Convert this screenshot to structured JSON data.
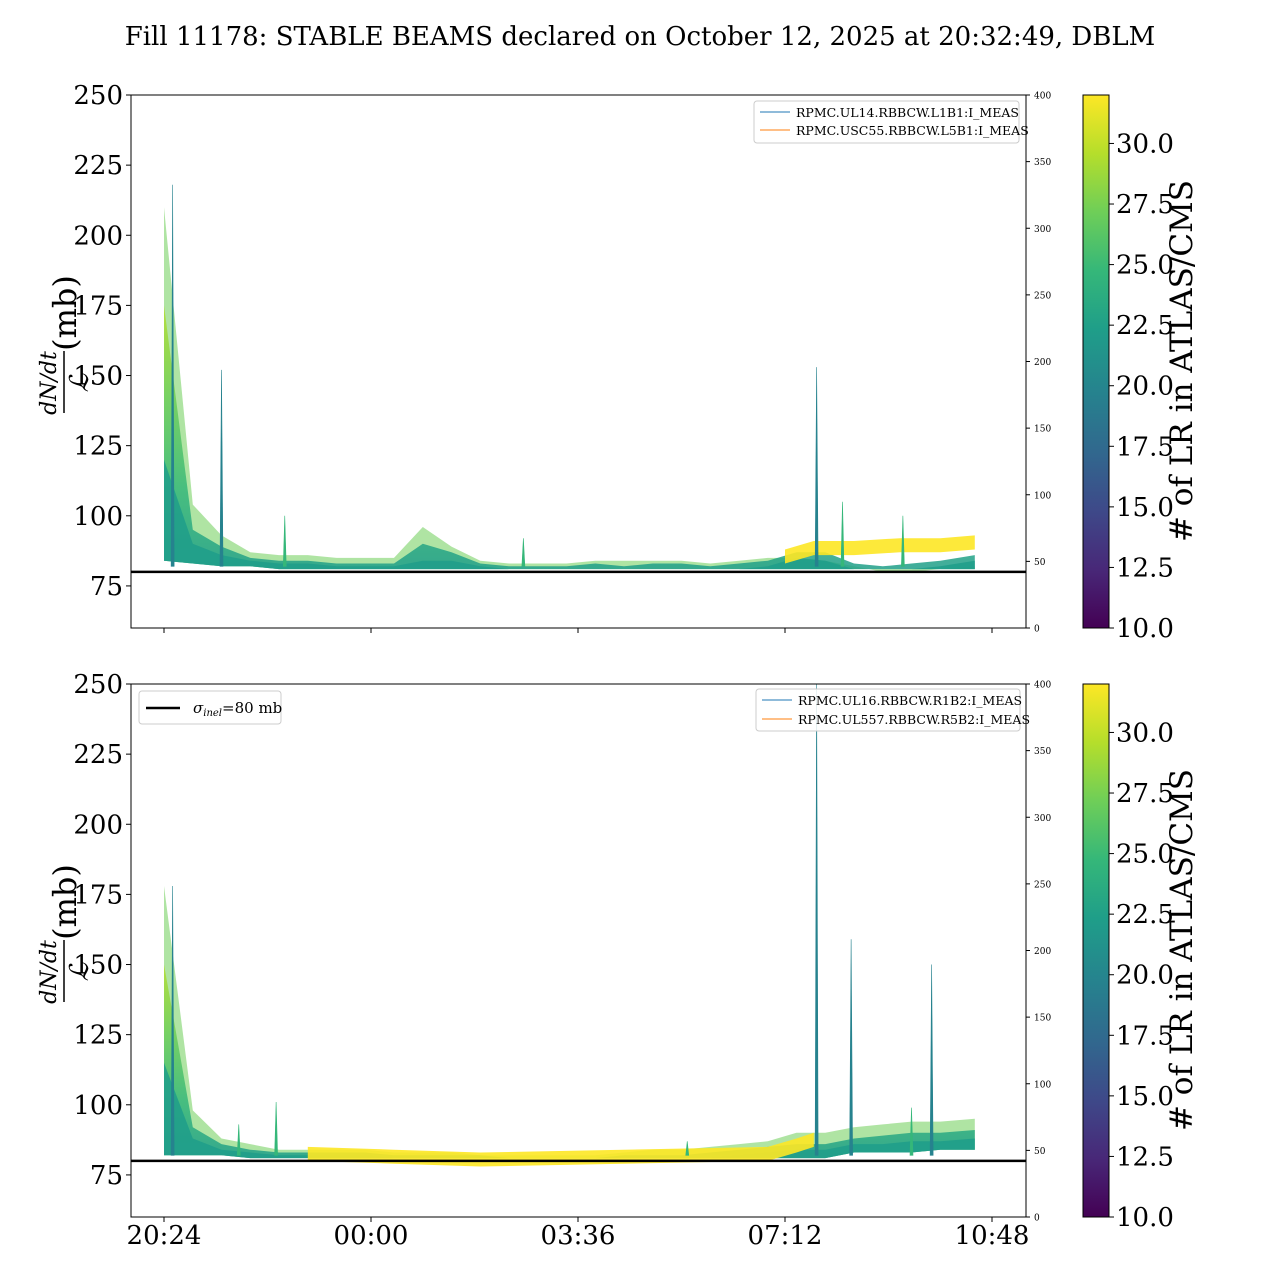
{
  "title": "Fill 11178: STABLE BEAMS declared on October 12, 2025 at 20:32:49, DBLM",
  "colorscale": [
    "#440154",
    "#482878",
    "#3e4989",
    "#31688e",
    "#26828e",
    "#1f9e89",
    "#35b779",
    "#6ece58",
    "#b5de2b",
    "#fde725"
  ],
  "chart_data": [
    {
      "type": "area",
      "panel": "top",
      "ylabel": "(mb)",
      "ylabel_math": "dN/dt / ℒ",
      "ylim": [
        60,
        250
      ],
      "yticks": [
        75,
        100,
        125,
        150,
        175,
        200,
        225,
        250
      ],
      "y2lim": [
        0,
        400
      ],
      "y2ticks": [
        0,
        50,
        100,
        150,
        200,
        250,
        300,
        350,
        400
      ],
      "x_hours": [
        0,
        0.5,
        1,
        1.5,
        2,
        2.5,
        3,
        3.5,
        4,
        4.5,
        5,
        5.5,
        6,
        6.5,
        7,
        7.5,
        8,
        8.5,
        9,
        9.5,
        10,
        10.5,
        11,
        11.5,
        12,
        12.5,
        13,
        13.5,
        14.1
      ],
      "series": [
        {
          "name": "envelope_top",
          "values": [
            210,
            104,
            93,
            87,
            86,
            86,
            85,
            85,
            85,
            96,
            89,
            84,
            83,
            83,
            83,
            84,
            84,
            84,
            84,
            83,
            84,
            85,
            85,
            84,
            82,
            80,
            80,
            81,
            82
          ]
        },
        {
          "name": "upper_band",
          "values": [
            175,
            95,
            89,
            85,
            84,
            84,
            83,
            83,
            83,
            90,
            87,
            83,
            82,
            82,
            82,
            83,
            82,
            83,
            83,
            82,
            83,
            84,
            87,
            87,
            83,
            82,
            83,
            84,
            86
          ]
        },
        {
          "name": "lower_band",
          "values": [
            120,
            90,
            86,
            84,
            83,
            83,
            82,
            82,
            82,
            84,
            84,
            82,
            81,
            81,
            81,
            81,
            81,
            81,
            81,
            81,
            81,
            82,
            85,
            84,
            81,
            81,
            81,
            82,
            84
          ]
        },
        {
          "name": "baseline",
          "values": [
            84,
            83,
            82,
            82,
            81,
            81,
            81,
            81,
            81,
            81,
            81,
            81,
            81,
            81,
            81,
            81,
            81,
            81,
            81,
            81,
            81,
            81,
            81,
            81,
            81,
            81,
            81,
            81,
            81
          ]
        },
        {
          "name": "bright_upper",
          "values": [
            0,
            0,
            0,
            0,
            0,
            0,
            0,
            0,
            0,
            0,
            0,
            0,
            0,
            0,
            0,
            0,
            0,
            0,
            0,
            0,
            0,
            0,
            0,
            0,
            0,
            0,
            0,
            0,
            0
          ]
        }
      ],
      "spikes": [
        [
          0.15,
          218
        ],
        [
          1.0,
          152
        ],
        [
          2.1,
          100
        ],
        [
          6.25,
          92
        ],
        [
          11.35,
          153
        ],
        [
          11.8,
          105
        ],
        [
          12.85,
          100
        ]
      ],
      "bright_band": [
        [
          10.8,
          88
        ],
        [
          11.3,
          91
        ],
        [
          12.0,
          91
        ],
        [
          12.8,
          92
        ],
        [
          13.0,
          92
        ],
        [
          13.5,
          92
        ],
        [
          14.1,
          93
        ]
      ],
      "reference_line": 80,
      "legend": [
        "RPMC.UL14.RBBCW.L1B1:I_MEAS",
        "RPMC.USC55.RBBCW.L5B1:I_MEAS"
      ],
      "legend_colors": [
        "#1f77b4",
        "#ff7f0e"
      ],
      "legend_placement": "top-right",
      "colorbar_label": "# of LR in ATLAS/CMS",
      "colorbar_range": [
        10,
        32
      ],
      "colorbar_ticks": [
        "10.0",
        "12.5",
        "15.0",
        "17.5",
        "20.0",
        "22.5",
        "25.0",
        "27.5",
        "30.0"
      ]
    },
    {
      "type": "area",
      "panel": "bottom",
      "ylabel": "(mb)",
      "ylabel_math": "dN/dt / ℒ",
      "ylim": [
        60,
        250
      ],
      "yticks": [
        75,
        100,
        125,
        150,
        175,
        200,
        225,
        250
      ],
      "y2lim": [
        0,
        400
      ],
      "y2ticks": [
        0,
        50,
        100,
        150,
        200,
        250,
        300,
        350,
        400
      ],
      "xticks": [
        "20:24",
        "00:00",
        "03:36",
        "07:12",
        "10:48"
      ],
      "xtick_hours": [
        0,
        3.6,
        7.2,
        10.8,
        14.4
      ],
      "x_hours": [
        0,
        0.5,
        1,
        1.5,
        2,
        2.5,
        3,
        3.5,
        4,
        4.5,
        5,
        5.5,
        6,
        6.5,
        7,
        7.5,
        8,
        8.5,
        9,
        9.5,
        10,
        10.5,
        11,
        11.5,
        12,
        12.5,
        13,
        13.5,
        14.1
      ],
      "series": [
        {
          "name": "envelope_top",
          "values": [
            178,
            98,
            88,
            86,
            84,
            84,
            84,
            84,
            83,
            83,
            83,
            82,
            82,
            82,
            82,
            82,
            83,
            84,
            84,
            85,
            86,
            87,
            90,
            90,
            92,
            93,
            94,
            94,
            95
          ]
        },
        {
          "name": "upper_band",
          "values": [
            150,
            92,
            86,
            84,
            83,
            83,
            83,
            83,
            82,
            82,
            82,
            82,
            81,
            81,
            81,
            81,
            82,
            82,
            82,
            83,
            84,
            85,
            86,
            86,
            88,
            89,
            90,
            90,
            91
          ]
        },
        {
          "name": "lower_band",
          "values": [
            115,
            88,
            84,
            83,
            82,
            82,
            82,
            82,
            81,
            81,
            81,
            81,
            81,
            81,
            81,
            81,
            81,
            81,
            81,
            81,
            82,
            83,
            84,
            84,
            86,
            86,
            87,
            87,
            88
          ]
        },
        {
          "name": "baseline",
          "values": [
            82,
            82,
            82,
            81,
            81,
            81,
            81,
            81,
            81,
            81,
            81,
            81,
            81,
            81,
            81,
            81,
            81,
            81,
            81,
            81,
            81,
            81,
            81,
            81,
            83,
            83,
            83,
            84,
            84
          ]
        },
        {
          "name": "bright_upper",
          "values": [
            0,
            0,
            0,
            0,
            0,
            0,
            0,
            0,
            0,
            0,
            0,
            0,
            0,
            0,
            0,
            0,
            0,
            0,
            0,
            0,
            0,
            0,
            0,
            0,
            0,
            0,
            0,
            0,
            0
          ]
        }
      ],
      "spikes": [
        [
          0.15,
          178
        ],
        [
          1.3,
          93
        ],
        [
          1.95,
          101
        ],
        [
          9.1,
          87
        ],
        [
          11.35,
          250
        ],
        [
          11.95,
          159
        ],
        [
          13.0,
          99
        ],
        [
          13.35,
          150
        ]
      ],
      "bright_band": [
        [
          2.5,
          85
        ],
        [
          4.0,
          84
        ],
        [
          5.5,
          83
        ],
        [
          10.5,
          85
        ],
        [
          11.0,
          88
        ],
        [
          11.3,
          90
        ]
      ],
      "reference_line": 80,
      "reference_legend": "σinel=80 mb",
      "legend": [
        "RPMC.UL16.RBBCW.R1B2:I_MEAS",
        "RPMC.UL557.RBBCW.R5B2:I_MEAS"
      ],
      "legend_colors": [
        "#1f77b4",
        "#ff7f0e"
      ],
      "legend_placement": "top-right",
      "colorbar_label": "# of LR in ATLAS/CMS",
      "colorbar_range": [
        10,
        32
      ],
      "colorbar_ticks": [
        "10.0",
        "12.5",
        "15.0",
        "17.5",
        "20.0",
        "22.5",
        "25.0",
        "27.5",
        "30.0"
      ]
    }
  ]
}
